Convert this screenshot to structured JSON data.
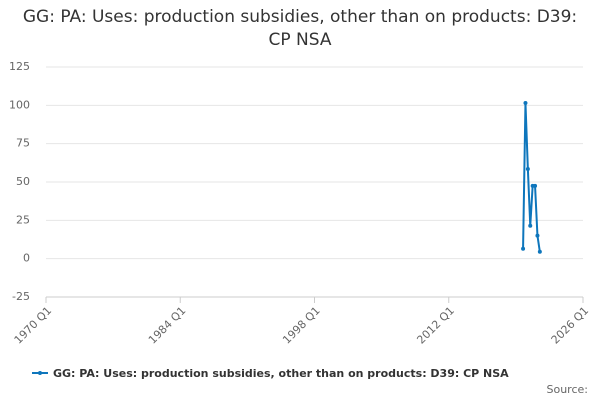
{
  "chart_data": {
    "type": "line",
    "title": "GG: PA: Uses: production subsidies, other than on products: D39: CP NSA",
    "x": [
      "2019 Q4",
      "2020 Q1",
      "2020 Q2",
      "2020 Q3",
      "2020 Q4",
      "2021 Q1",
      "2021 Q2",
      "2021 Q3"
    ],
    "series": [
      {
        "name": "GG: PA: Uses: production subsidies, other than on products: D39: CP NSA",
        "color": "#0e76bc",
        "values": [
          6.5,
          101.5,
          58.5,
          21.5,
          47.5,
          47.5,
          15,
          4.5
        ]
      }
    ],
    "xlim": [
      "1970 Q1",
      "2026 Q1"
    ],
    "xticks": [
      "1970 Q1",
      "1984 Q1",
      "1998 Q1",
      "2012 Q1",
      "2026 Q1"
    ],
    "ylim": [
      -25,
      125
    ],
    "yticks": [
      -25,
      0,
      25,
      50,
      75,
      100,
      125
    ],
    "grid": true,
    "source": "Source:"
  }
}
